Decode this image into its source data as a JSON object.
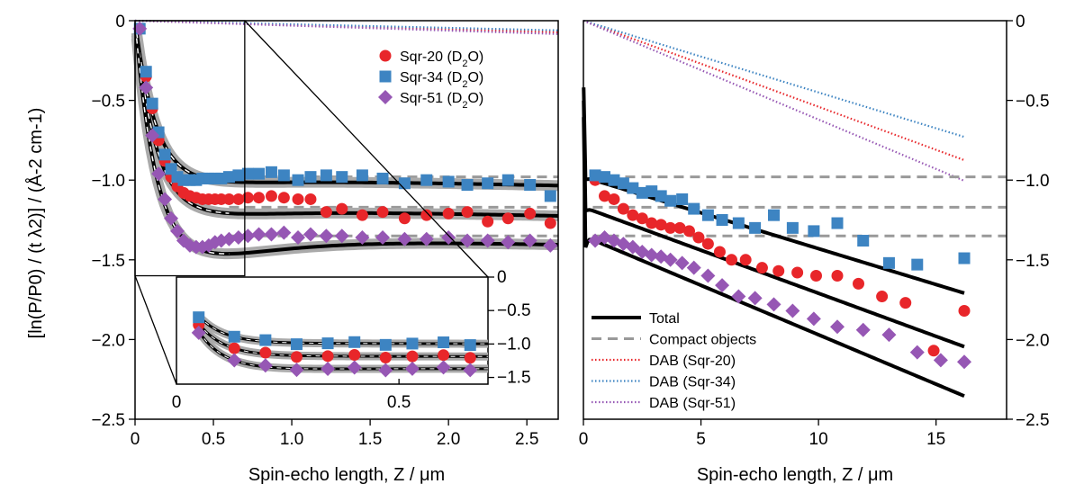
{
  "colors": {
    "sqr20": "#e8262a",
    "sqr34": "#3d84c2",
    "sqr51": "#9657b4",
    "total": "#000000",
    "compact": "#999999",
    "band": "#aaaaaa"
  },
  "shared_ylabel": "[ln(P/P0) / (t λ2)] / (Å-2 cm-1)",
  "chart_data": [
    {
      "panel": "left",
      "type": "scatter",
      "xlabel": "Spin-echo length, Z / μm",
      "xlim": [
        0,
        2.7
      ],
      "ylim": [
        -2.5,
        0
      ],
      "xticks": [
        "0",
        "0.5",
        "1.0",
        "1.5",
        "2.0",
        "2.5"
      ],
      "xtick_values": [
        0,
        0.5,
        1.0,
        1.5,
        2.0,
        2.5
      ],
      "yticks": [
        "0",
        "−0.5",
        "−1.0",
        "−1.5",
        "−2.0",
        "−2.5"
      ],
      "ytick_values": [
        0,
        -0.5,
        -1.0,
        -1.5,
        -2.0,
        -2.5
      ],
      "legend": [
        {
          "label": "Sqr-20 (D2O)",
          "marker": "circle",
          "series": "sqr20"
        },
        {
          "label": "Sqr-34 (D2O)",
          "marker": "square",
          "series": "sqr34"
        },
        {
          "label": "Sqr-51 (D2O)",
          "marker": "diamond",
          "series": "sqr51"
        }
      ],
      "series": [
        {
          "name": "Sqr-20 (D2O)",
          "key": "sqr20",
          "marker": "circle",
          "x": [
            0.03,
            0.07,
            0.11,
            0.15,
            0.19,
            0.23,
            0.27,
            0.31,
            0.35,
            0.39,
            0.43,
            0.47,
            0.51,
            0.55,
            0.6,
            0.66,
            0.72,
            0.79,
            0.87,
            0.95,
            1.04,
            1.12,
            1.22,
            1.32,
            1.45,
            1.58,
            1.72,
            1.86,
            2.0,
            2.12,
            2.25,
            2.38,
            2.52,
            2.65
          ],
          "y": [
            -0.05,
            -0.35,
            -0.55,
            -0.75,
            -0.88,
            -0.98,
            -1.04,
            -1.08,
            -1.1,
            -1.11,
            -1.12,
            -1.12,
            -1.12,
            -1.12,
            -1.12,
            -1.12,
            -1.11,
            -1.11,
            -1.1,
            -1.11,
            -1.12,
            -1.12,
            -1.2,
            -1.18,
            -1.22,
            -1.2,
            -1.24,
            -1.22,
            -1.21,
            -1.2,
            -1.26,
            -1.24,
            -1.21,
            -1.27
          ]
        },
        {
          "name": "Sqr-34 (D2O)",
          "key": "sqr34",
          "marker": "square",
          "x": [
            0.03,
            0.07,
            0.11,
            0.15,
            0.19,
            0.23,
            0.27,
            0.31,
            0.35,
            0.39,
            0.43,
            0.47,
            0.51,
            0.55,
            0.6,
            0.66,
            0.72,
            0.79,
            0.87,
            0.95,
            1.04,
            1.12,
            1.22,
            1.32,
            1.45,
            1.58,
            1.72,
            1.86,
            2.0,
            2.12,
            2.25,
            2.38,
            2.52,
            2.65
          ],
          "y": [
            -0.05,
            -0.32,
            -0.52,
            -0.7,
            -0.84,
            -0.93,
            -0.98,
            -1.0,
            -1.0,
            -1.0,
            -0.99,
            -0.99,
            -0.99,
            -0.99,
            -0.98,
            -0.97,
            -0.96,
            -0.96,
            -0.95,
            -0.97,
            -1.0,
            -0.98,
            -0.97,
            -0.98,
            -0.97,
            -0.99,
            -1.02,
            -1.0,
            -1.01,
            -1.03,
            -1.02,
            -1.0,
            -1.03,
            -1.1
          ]
        },
        {
          "name": "Sqr-51 (D2O)",
          "key": "sqr51",
          "marker": "diamond",
          "x": [
            0.03,
            0.07,
            0.11,
            0.15,
            0.19,
            0.23,
            0.27,
            0.31,
            0.35,
            0.39,
            0.43,
            0.47,
            0.51,
            0.55,
            0.6,
            0.66,
            0.72,
            0.79,
            0.87,
            0.95,
            1.04,
            1.12,
            1.22,
            1.32,
            1.45,
            1.58,
            1.72,
            1.86,
            2.0,
            2.12,
            2.25,
            2.38,
            2.52,
            2.65
          ],
          "y": [
            -0.05,
            -0.42,
            -0.72,
            -0.96,
            -1.12,
            -1.24,
            -1.32,
            -1.38,
            -1.41,
            -1.42,
            -1.42,
            -1.41,
            -1.39,
            -1.38,
            -1.37,
            -1.36,
            -1.35,
            -1.34,
            -1.34,
            -1.33,
            -1.36,
            -1.34,
            -1.35,
            -1.35,
            -1.36,
            -1.36,
            -1.37,
            -1.37,
            -1.36,
            -1.38,
            -1.38,
            -1.39,
            -1.38,
            -1.41
          ]
        }
      ],
      "curves": [
        {
          "key": "sqr20",
          "plateau": -1.17,
          "dab_slope": -0.054
        },
        {
          "key": "sqr34",
          "plateau": -0.98,
          "dab_slope": -0.045
        },
        {
          "key": "sqr51",
          "plateau": -1.35,
          "dab_slope": -0.062
        }
      ],
      "inset": {
        "xlim": [
          0,
          0.7
        ],
        "ylim": [
          -1.6,
          0
        ],
        "xticks": [
          "0",
          "0.5"
        ],
        "xtick_values": [
          0,
          0.5
        ],
        "yticks": [
          "0",
          "−0.5",
          "−1.0",
          "−1.5"
        ],
        "ytick_values": [
          0,
          -0.5,
          -1.0,
          -1.5
        ]
      }
    },
    {
      "panel": "right",
      "type": "scatter",
      "xlabel": "Spin-echo length, Z / μm",
      "xlim": [
        0,
        18
      ],
      "ylim": [
        -2.5,
        0
      ],
      "xticks": [
        "0",
        "5",
        "10",
        "15"
      ],
      "xtick_values": [
        0,
        5,
        10,
        15
      ],
      "yticks": [
        "0",
        "−0.5",
        "−1.0",
        "−1.5",
        "−2.0",
        "−2.5"
      ],
      "ytick_values": [
        0,
        -0.5,
        -1.0,
        -1.5,
        -2.0,
        -2.5
      ],
      "legend": [
        {
          "label": "Total",
          "style": "total"
        },
        {
          "label": "Compact objects",
          "style": "compact"
        },
        {
          "label": "DAB (Sqr-20)",
          "style": "dab",
          "series": "sqr20"
        },
        {
          "label": "DAB (Sqr-34)",
          "style": "dab",
          "series": "sqr34"
        },
        {
          "label": "DAB (Sqr-51)",
          "style": "dab",
          "series": "sqr51"
        }
      ],
      "series": [
        {
          "name": "Sqr-20 (D2O)",
          "key": "sqr20",
          "marker": "circle",
          "x": [
            0.5,
            0.9,
            1.3,
            1.7,
            2.1,
            2.5,
            2.9,
            3.3,
            3.7,
            4.1,
            4.5,
            4.9,
            5.3,
            5.8,
            6.3,
            6.9,
            7.6,
            8.3,
            9.1,
            9.9,
            10.8,
            11.7,
            12.7,
            13.7,
            14.9,
            16.2
          ],
          "y": [
            -1.0,
            -1.1,
            -1.12,
            -1.18,
            -1.22,
            -1.24,
            -1.27,
            -1.28,
            -1.3,
            -1.3,
            -1.32,
            -1.36,
            -1.4,
            -1.45,
            -1.5,
            -1.5,
            -1.55,
            -1.57,
            -1.58,
            -1.6,
            -1.6,
            -1.65,
            -1.73,
            -1.77,
            -2.07,
            -1.82
          ]
        },
        {
          "name": "Sqr-34 (D2O)",
          "key": "sqr34",
          "marker": "square",
          "x": [
            0.5,
            0.9,
            1.3,
            1.7,
            2.1,
            2.5,
            2.9,
            3.3,
            3.7,
            4.2,
            4.7,
            5.3,
            5.9,
            6.6,
            7.3,
            8.1,
            8.9,
            9.8,
            10.8,
            11.9,
            13.0,
            14.2,
            16.2
          ],
          "y": [
            -0.97,
            -0.98,
            -1.0,
            -1.02,
            -1.05,
            -1.08,
            -1.07,
            -1.1,
            -1.13,
            -1.12,
            -1.18,
            -1.22,
            -1.25,
            -1.27,
            -1.3,
            -1.22,
            -1.3,
            -1.32,
            -1.27,
            -1.38,
            -1.52,
            -1.53,
            -1.49
          ]
        },
        {
          "name": "Sqr-51 (D2O)",
          "key": "sqr51",
          "marker": "diamond",
          "x": [
            0.5,
            0.9,
            1.3,
            1.7,
            2.1,
            2.5,
            2.9,
            3.3,
            3.7,
            4.2,
            4.7,
            5.3,
            5.9,
            6.6,
            7.3,
            8.1,
            8.9,
            9.8,
            10.8,
            11.9,
            13.0,
            14.2,
            15.2,
            16.2
          ],
          "y": [
            -1.38,
            -1.36,
            -1.38,
            -1.4,
            -1.42,
            -1.45,
            -1.47,
            -1.48,
            -1.5,
            -1.52,
            -1.55,
            -1.6,
            -1.66,
            -1.73,
            -1.74,
            -1.78,
            -1.82,
            -1.87,
            -1.92,
            -1.94,
            -1.97,
            -2.08,
            -2.13,
            -2.14
          ]
        }
      ],
      "curves": [
        {
          "key": "sqr20",
          "plateau": -1.17,
          "dab_slope": -0.054
        },
        {
          "key": "sqr34",
          "plateau": -0.98,
          "dab_slope": -0.045
        },
        {
          "key": "sqr51",
          "plateau": -1.35,
          "dab_slope": -0.062
        }
      ]
    }
  ]
}
